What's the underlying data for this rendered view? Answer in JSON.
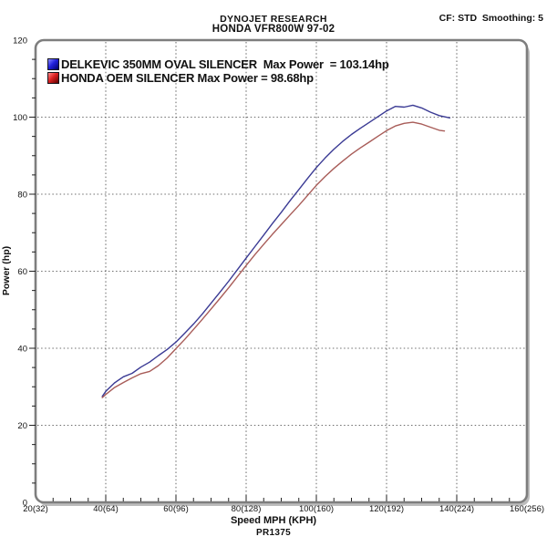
{
  "header": {
    "brand": "DYNOJET RESEARCH",
    "model": "HONDA VFR800W 97-02",
    "settings": "CF: STD  Smoothing: 5"
  },
  "legend": [
    {
      "label": "DELKEVIC 350MM OVAL SILENCER  Max Power  = 103.14hp",
      "swatch_color": "#2222dd",
      "swatch_dark": "#000066"
    },
    {
      "label": "HONDA OEM SILENCER Max Power = 98.68hp",
      "swatch_color": "#dd2222",
      "swatch_dark": "#5c0000"
    }
  ],
  "footer": {
    "xlabel": "Speed MPH (KPH)",
    "run_id": "PR1375"
  },
  "chart_data": {
    "type": "line",
    "title": "HONDA VFR800W 97-02",
    "subtitle": "DYNOJET RESEARCH",
    "xlabel": "Speed MPH (KPH)",
    "ylabel": "Power (hp)",
    "xlim": [
      20,
      160
    ],
    "ylim": [
      0,
      120
    ],
    "x_major_ticks": [
      20,
      40,
      60,
      80,
      100,
      120,
      140,
      160
    ],
    "x_tick_labels": [
      "20(32)",
      "40(64)",
      "60(96)",
      "80(128)",
      "100(160)",
      "120(192)",
      "140(224)",
      "160(256)"
    ],
    "y_major_ticks": [
      0,
      20,
      40,
      60,
      80,
      100,
      120
    ],
    "x_minor_step": 5,
    "y_minor_step": 5,
    "grid": "dashed-at-major-ticks",
    "legend_position": "top-left-inside",
    "x": [
      39,
      40,
      42.5,
      45,
      47.5,
      50,
      52.5,
      55,
      57.5,
      60,
      62.5,
      65,
      67.5,
      70,
      72.5,
      75,
      77.5,
      80,
      82.5,
      85,
      87.5,
      90,
      92.5,
      95,
      97.5,
      100,
      102.5,
      105,
      107.5,
      110,
      112.5,
      115,
      117.5,
      120,
      122.5,
      125,
      127.5,
      130,
      132.5,
      135,
      136.5,
      138
    ],
    "series": [
      {
        "name": "DELKEVIC 350MM OVAL SILENCER",
        "max_power_hp": 103.14,
        "color": "#3a3a94",
        "values": [
          27.5,
          28.8,
          31.0,
          32.6,
          33.5,
          35.1,
          36.4,
          38.1,
          39.7,
          41.6,
          43.9,
          46.3,
          48.9,
          51.7,
          54.5,
          57.4,
          60.4,
          63.4,
          66.4,
          69.4,
          72.4,
          75.3,
          78.3,
          81.2,
          84.1,
          86.9,
          89.4,
          91.7,
          93.7,
          95.5,
          97.1,
          98.6,
          100.1,
          101.6,
          102.8,
          102.6,
          103.1,
          102.4,
          101.3,
          100.4,
          100.1,
          99.8
        ]
      },
      {
        "name": "HONDA OEM SILENCER",
        "max_power_hp": 98.68,
        "color": "#a85c58",
        "values": [
          27.2,
          28.0,
          29.8,
          31.1,
          32.3,
          33.4,
          34.0,
          35.5,
          37.5,
          39.9,
          42.3,
          44.9,
          47.5,
          50.2,
          52.9,
          55.7,
          58.6,
          61.5,
          64.3,
          67.0,
          69.6,
          72.1,
          74.6,
          77.1,
          79.7,
          82.3,
          84.6,
          86.7,
          88.6,
          90.4,
          92.0,
          93.5,
          95.0,
          96.5,
          97.7,
          98.4,
          98.68,
          98.2,
          97.4,
          96.6,
          96.4,
          null
        ]
      }
    ]
  }
}
